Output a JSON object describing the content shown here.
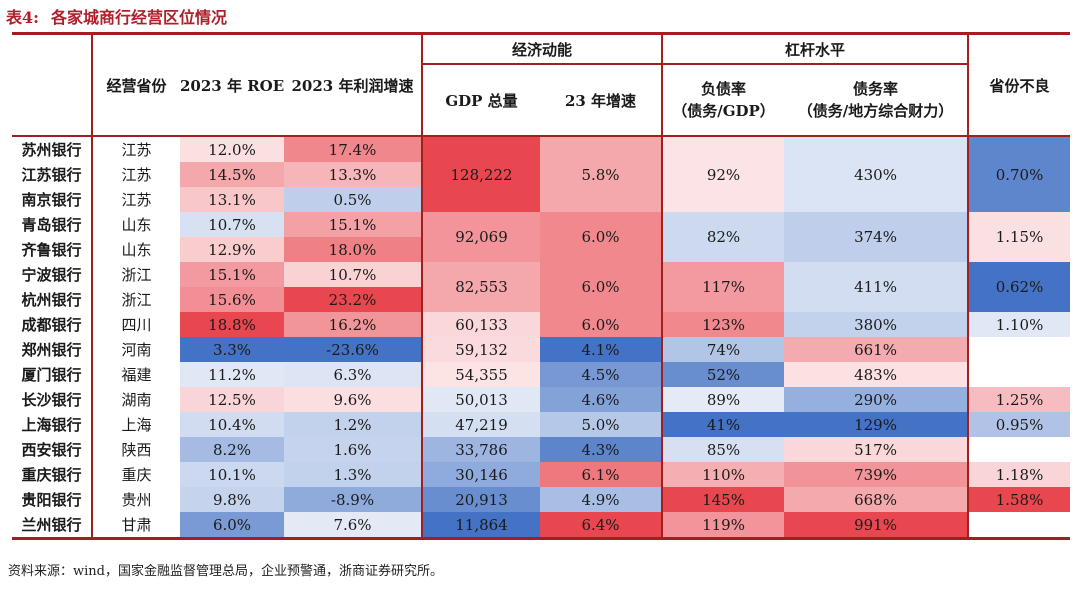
{
  "title": {
    "number": "表4:",
    "text": "各家城商行经营区位情况"
  },
  "headers": {
    "groups": {
      "econ": "经济动能",
      "leverage": "杠杆水平",
      "npl": "省份不良"
    },
    "province": "经营省份",
    "roe": "2023 年 ROE",
    "profit": "2023 年利润增速",
    "gdp": "GDP 总量",
    "growth": "23 年增速",
    "debt_ratio_l1": "负债率",
    "debt_ratio_l2": "（债务/GDP）",
    "liab_ratio_l1": "债务率",
    "liab_ratio_l2": "（债务/地方综合财力）"
  },
  "rows": [
    {
      "bank": "苏州银行",
      "province": "江苏",
      "roe": "12.0%",
      "profit": "17.4%"
    },
    {
      "bank": "江苏银行",
      "province": "江苏",
      "roe": "14.5%",
      "profit": "13.3%"
    },
    {
      "bank": "南京银行",
      "province": "江苏",
      "roe": "13.1%",
      "profit": "0.5%"
    },
    {
      "bank": "青岛银行",
      "province": "山东",
      "roe": "10.7%",
      "profit": "15.1%"
    },
    {
      "bank": "齐鲁银行",
      "province": "山东",
      "roe": "12.9%",
      "profit": "18.0%"
    },
    {
      "bank": "宁波银行",
      "province": "浙江",
      "roe": "15.1%",
      "profit": "10.7%"
    },
    {
      "bank": "杭州银行",
      "province": "浙江",
      "roe": "15.6%",
      "profit": "23.2%"
    },
    {
      "bank": "成都银行",
      "province": "四川",
      "roe": "18.8%",
      "profit": "16.2%"
    },
    {
      "bank": "郑州银行",
      "province": "河南",
      "roe": "3.3%",
      "profit": "-23.6%"
    },
    {
      "bank": "厦门银行",
      "province": "福建",
      "roe": "11.2%",
      "profit": "6.3%"
    },
    {
      "bank": "长沙银行",
      "province": "湖南",
      "roe": "12.5%",
      "profit": "9.6%"
    },
    {
      "bank": "上海银行",
      "province": "上海",
      "roe": "10.4%",
      "profit": "1.2%"
    },
    {
      "bank": "西安银行",
      "province": "陕西",
      "roe": "8.2%",
      "profit": "1.6%"
    },
    {
      "bank": "重庆银行",
      "province": "重庆",
      "roe": "10.1%",
      "profit": "1.3%"
    },
    {
      "bank": "贵阳银行",
      "province": "贵州",
      "roe": "9.8%",
      "profit": "-8.9%"
    },
    {
      "bank": "兰州银行",
      "province": "甘肃",
      "roe": "6.0%",
      "profit": "7.6%"
    }
  ],
  "provinces": [
    {
      "gdp": "128,222",
      "growth": "5.8%",
      "debt": "92%",
      "liab": "430%",
      "npl": "0.70%"
    },
    {
      "gdp": "92,069",
      "growth": "6.0%",
      "debt": "82%",
      "liab": "374%",
      "npl": "1.15%"
    },
    {
      "gdp": "82,553",
      "growth": "6.0%",
      "debt": "117%",
      "liab": "411%",
      "npl": "0.62%"
    },
    {
      "gdp": "60,133",
      "growth": "6.0%",
      "debt": "123%",
      "liab": "380%",
      "npl": "1.10%"
    },
    {
      "gdp": "59,132",
      "growth": "4.1%",
      "debt": "74%",
      "liab": "661%",
      "npl": ""
    },
    {
      "gdp": "54,355",
      "growth": "4.5%",
      "debt": "52%",
      "liab": "483%",
      "npl": ""
    },
    {
      "gdp": "50,013",
      "growth": "4.6%",
      "debt": "89%",
      "liab": "290%",
      "npl": "1.25%"
    },
    {
      "gdp": "47,219",
      "growth": "5.0%",
      "debt": "41%",
      "liab": "129%",
      "npl": "0.95%"
    },
    {
      "gdp": "33,786",
      "growth": "4.3%",
      "debt": "85%",
      "liab": "517%",
      "npl": ""
    },
    {
      "gdp": "30,146",
      "growth": "6.1%",
      "debt": "110%",
      "liab": "739%",
      "npl": "1.18%"
    },
    {
      "gdp": "20,913",
      "growth": "4.9%",
      "debt": "145%",
      "liab": "668%",
      "npl": "1.58%"
    },
    {
      "gdp": "11,864",
      "growth": "6.4%",
      "debt": "119%",
      "liab": "991%",
      "npl": ""
    }
  ],
  "colors": {
    "accent_border": "#a02020",
    "title_red": "#b0202b",
    "red_max": "#e8474f",
    "blue_max": "#4472c4",
    "neutral": "#ffffff"
  },
  "source": "资料来源：wind，国家金融监督管理总局，企业预警通，浙商证券研究所。"
}
